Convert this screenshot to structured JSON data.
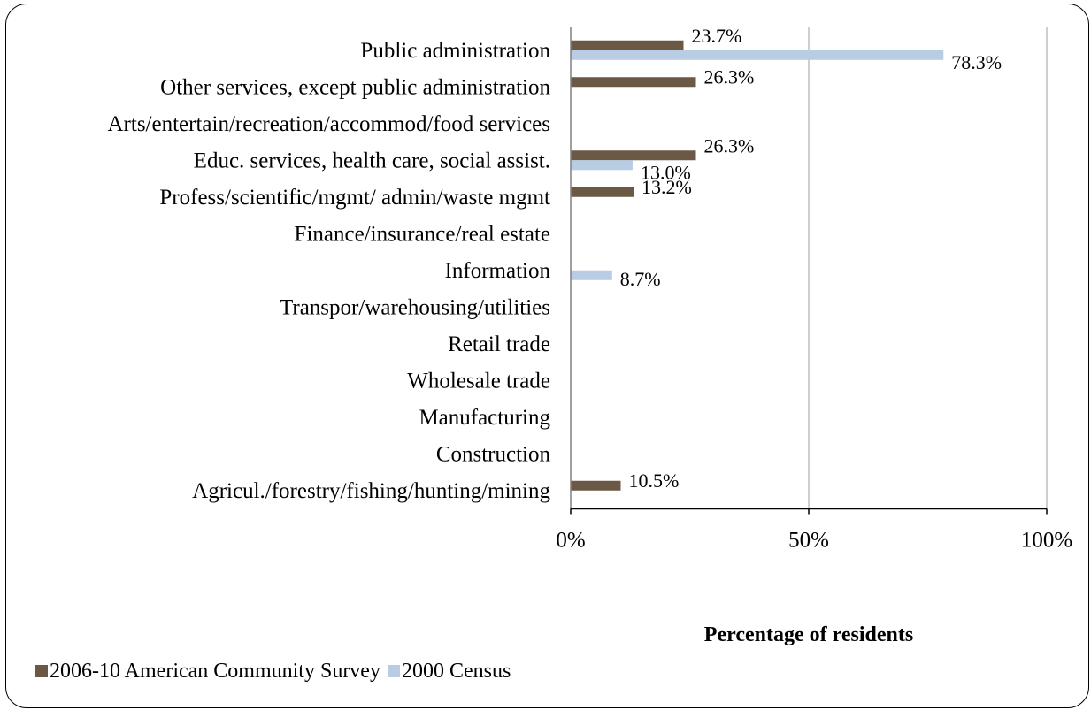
{
  "chart_data": {
    "type": "bar",
    "orientation": "horizontal",
    "categories": [
      "Public administration",
      "Other services, except public administration",
      "Arts/entertain/recreation/accommod/food services",
      "Educ. services, health care, social assist.",
      "Profess/scientific/mgmt/ admin/waste mgmt",
      "Finance/insurance/real estate",
      "Information",
      "Transpor/warehousing/utilities",
      "Retail trade",
      "Wholesale trade",
      "Manufacturing",
      "Construction",
      "Agricul./forestry/fishing/hunting/mining"
    ],
    "series": [
      {
        "name": "2006-10 American Community Survey",
        "color": "#6b5845",
        "values": [
          23.7,
          26.3,
          0,
          26.3,
          13.2,
          0,
          0,
          0,
          0,
          0,
          0,
          0,
          10.5
        ],
        "labels": [
          "23.7%",
          "26.3%",
          "",
          "26.3%",
          "13.2%",
          "",
          "",
          "",
          "",
          "",
          "",
          "",
          "10.5%"
        ]
      },
      {
        "name": "2000 Census",
        "color": "#b8cce4",
        "values": [
          78.3,
          0,
          0,
          13.0,
          0,
          0,
          8.7,
          0,
          0,
          0,
          0,
          0,
          0
        ],
        "labels": [
          "78.3%",
          "",
          "",
          "13.0%",
          "",
          "",
          "8.7%",
          "",
          "",
          "",
          "",
          "",
          ""
        ]
      }
    ],
    "xlabel": "Percentage of residents",
    "xlim": [
      0,
      100
    ],
    "xticks": [
      "0%",
      "50%",
      "100%"
    ],
    "xtick_values": [
      0,
      50,
      100
    ],
    "gridlines": true,
    "legend_position": "bottom-left"
  }
}
